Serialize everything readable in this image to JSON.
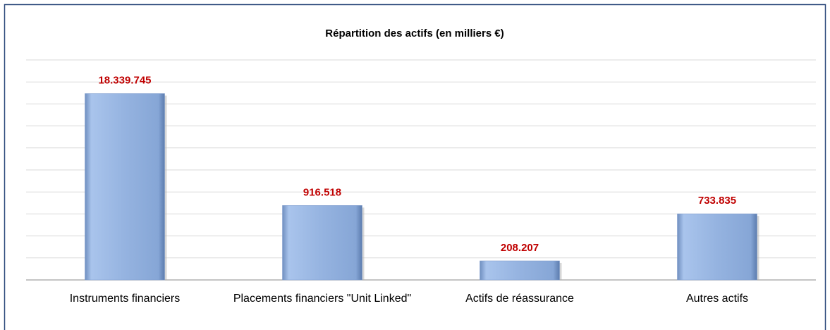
{
  "chart_data": {
    "type": "bar",
    "title": "Répartition des actifs (en milliers €)",
    "categories": [
      "Instruments financiers",
      "Placements financiers \"Unit Linked\"",
      "Actifs de réassurance",
      "Autres actifs"
    ],
    "values": [
      18339745,
      916518,
      208207,
      733835
    ],
    "value_labels": [
      "18.339.745",
      "916.518",
      "208.207",
      "733.835"
    ],
    "color": "#95b3e0",
    "label_color": "#c00000",
    "log_scale": true,
    "ylim": [
      125000,
      45000000
    ],
    "grid": true
  }
}
